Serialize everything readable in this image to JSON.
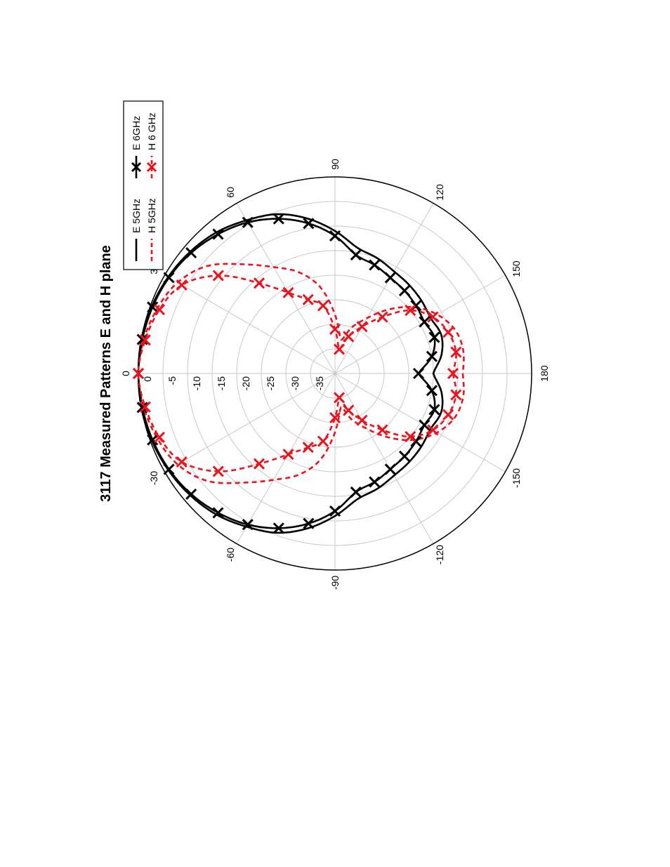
{
  "chart_data": {
    "type": "polar",
    "title": "3117 Measured Patterns E and H plane",
    "radial_unit": "dB",
    "radial_range": [
      -40,
      0
    ],
    "radial_ticks": [
      "0",
      "-5",
      "-10",
      "-15",
      "-20",
      "-25",
      "-30",
      "-35"
    ],
    "radial_tick_values": [
      0,
      -5,
      -10,
      -15,
      -20,
      -25,
      -30,
      -35
    ],
    "angle_ticks": [
      {
        "deg": 0,
        "label": "0"
      },
      {
        "deg": 30,
        "label": "30"
      },
      {
        "deg": 60,
        "label": "60"
      },
      {
        "deg": 90,
        "label": "90"
      },
      {
        "deg": 120,
        "label": "120"
      },
      {
        "deg": 150,
        "label": "150"
      },
      {
        "deg": 180,
        "label": "180"
      },
      {
        "deg": -150,
        "label": "-150"
      },
      {
        "deg": -120,
        "label": "-120"
      },
      {
        "deg": -90,
        "label": "-90"
      },
      {
        "deg": -60,
        "label": "-60"
      },
      {
        "deg": -30,
        "label": "-30"
      }
    ],
    "grid": true,
    "legend_position": "top-right",
    "series": [
      {
        "name": "E 5GHz",
        "color": "#000000",
        "dashed": false,
        "marker": "none",
        "angles": [
          -180,
          -170,
          -160,
          -150,
          -140,
          -130,
          -120,
          -110,
          -100,
          -90,
          -80,
          -70,
          -60,
          -50,
          -40,
          -30,
          -20,
          -10,
          0,
          10,
          20,
          30,
          40,
          50,
          60,
          70,
          80,
          90,
          100,
          110,
          120,
          130,
          140,
          150,
          160,
          170,
          180
        ],
        "values": [
          -20,
          -18,
          -17,
          -17.5,
          -17,
          -16.5,
          -16,
          -15,
          -14,
          -11,
          -8,
          -5.5,
          -4,
          -2.5,
          -1.5,
          -0.8,
          -0.3,
          0,
          0,
          0,
          -0.3,
          -0.8,
          -1.5,
          -2.5,
          -4,
          -5.5,
          -8,
          -11,
          -14,
          -15,
          -16,
          -16.5,
          -17,
          -17.5,
          -17,
          -18,
          -20
        ]
      },
      {
        "name": "H 5GHz",
        "color": "#e8141e",
        "dashed": true,
        "marker": "none",
        "angles": [
          -180,
          -170,
          -160,
          -150,
          -140,
          -130,
          -120,
          -110,
          -100,
          -90,
          -80,
          -70,
          -60,
          -50,
          -40,
          -30,
          -20,
          -10,
          0,
          10,
          20,
          30,
          40,
          50,
          60,
          70,
          80,
          90,
          100,
          110,
          120,
          130,
          140,
          150,
          160,
          170,
          180
        ],
        "values": [
          -14,
          -13.5,
          -14,
          -16,
          -19,
          -23,
          -27,
          -30,
          -33,
          -28,
          -22,
          -18,
          -15,
          -11,
          -6,
          -3,
          -1.5,
          -0.5,
          0,
          -0.5,
          -1.5,
          -3,
          -6,
          -11,
          -15,
          -18,
          -22,
          -28,
          -33,
          -30,
          -27,
          -23,
          -19,
          -16,
          -14,
          -13.5,
          -14
        ]
      },
      {
        "name": "E 6GHz",
        "color": "#000000",
        "dashed": false,
        "marker": "x",
        "angles": [
          -180,
          -170,
          -160,
          -150,
          -140,
          -130,
          -120,
          -110,
          -100,
          -90,
          -80,
          -70,
          -60,
          -50,
          -40,
          -30,
          -20,
          -10,
          0,
          10,
          20,
          30,
          40,
          50,
          60,
          70,
          80,
          90,
          100,
          110,
          120,
          130,
          140,
          150,
          160,
          170,
          180
        ],
        "values": [
          -23,
          -20,
          -18.5,
          -19,
          -18.5,
          -18,
          -17.5,
          -16.5,
          -15.5,
          -12,
          -9,
          -6.5,
          -4.5,
          -3,
          -1.8,
          -1,
          -0.5,
          -0.2,
          0,
          -0.2,
          -0.5,
          -1,
          -1.8,
          -3,
          -4.5,
          -6.5,
          -9,
          -12,
          -15.5,
          -16.5,
          -17.5,
          -18,
          -18.5,
          -19,
          -18.5,
          -20,
          -23
        ]
      },
      {
        "name": "H 6 GHz",
        "color": "#e8141e",
        "dashed": true,
        "marker": "x",
        "angles": [
          -180,
          -170,
          -160,
          -150,
          -140,
          -130,
          -120,
          -110,
          -100,
          -90,
          -80,
          -70,
          -60,
          -50,
          -40,
          -30,
          -20,
          -10,
          0,
          10,
          20,
          30,
          40,
          50,
          60,
          70,
          80,
          90,
          100,
          110,
          120,
          130,
          140,
          150,
          160,
          170,
          180
        ],
        "values": [
          -16,
          -15,
          -15.5,
          -17,
          -20,
          -25,
          -29,
          -32,
          -35,
          -31,
          -26,
          -24,
          -21,
          -16,
          -9,
          -4,
          -2,
          -0.8,
          0,
          -0.8,
          -2,
          -4,
          -9,
          -16,
          -21,
          -24,
          -26,
          -31,
          -35,
          -32,
          -29,
          -25,
          -20,
          -17,
          -15.5,
          -15,
          -16
        ]
      }
    ]
  }
}
